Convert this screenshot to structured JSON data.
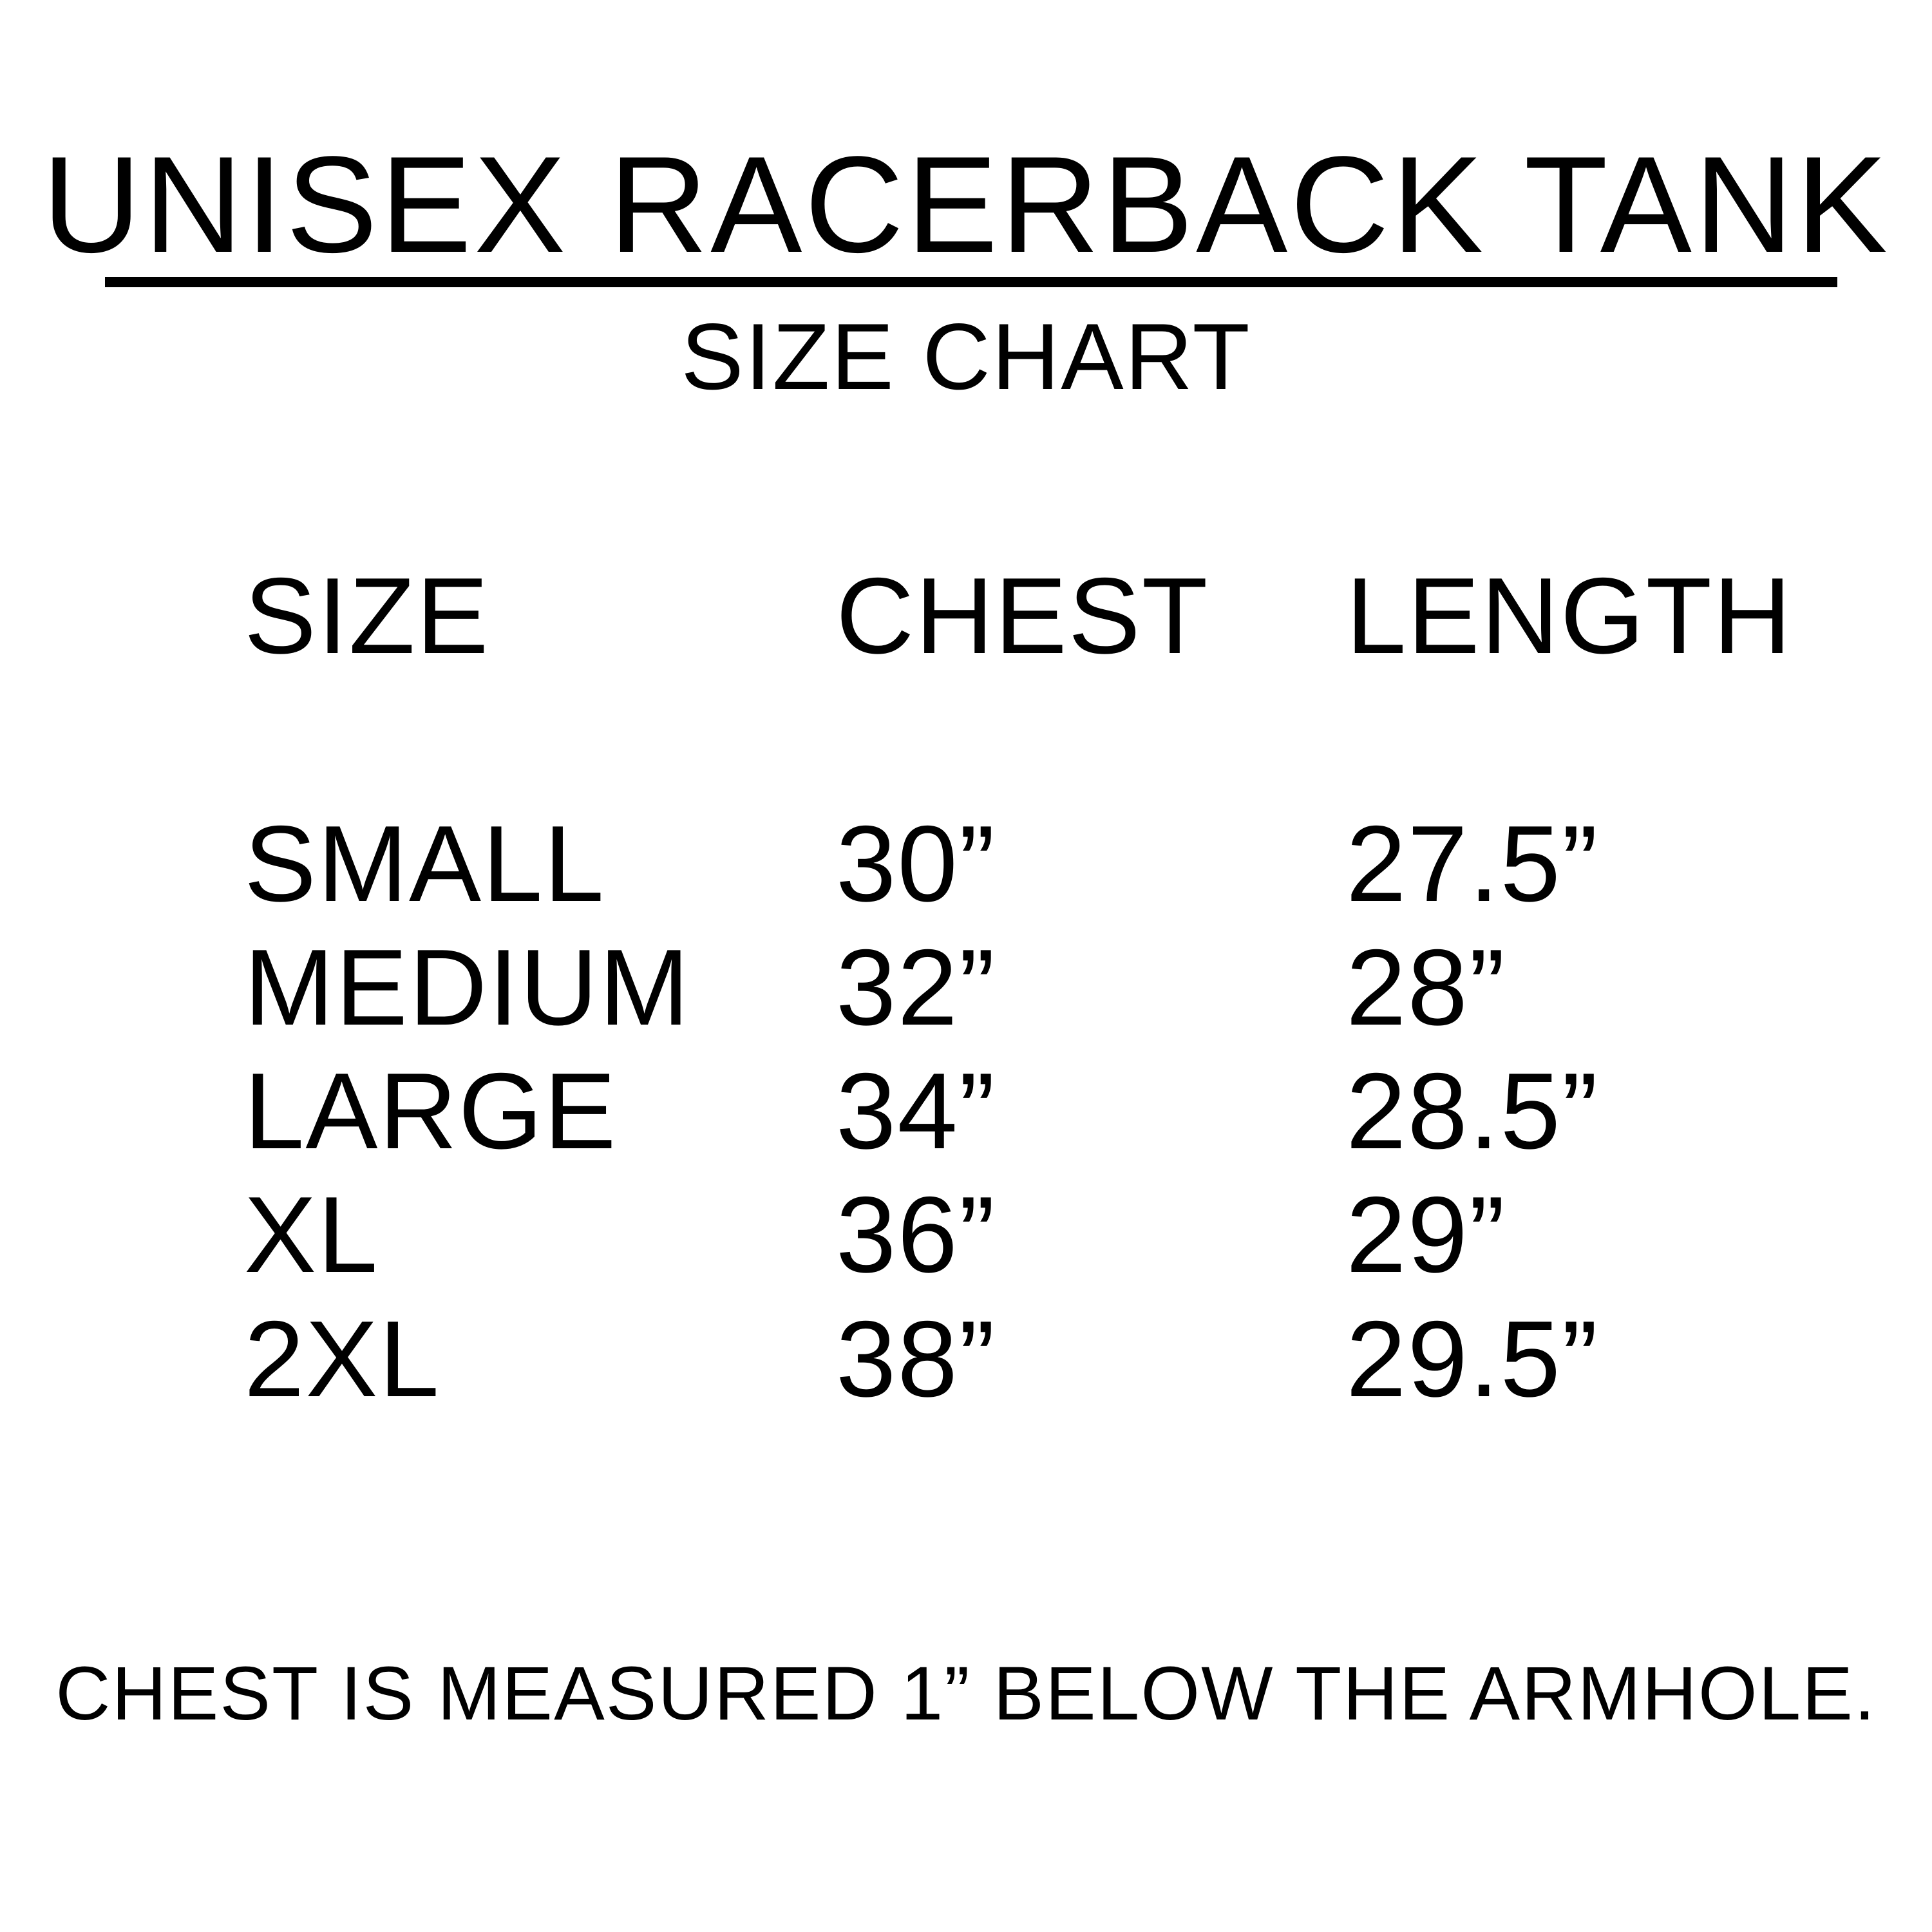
{
  "title": "UNISEX RACERBACK TANK",
  "subtitle": "SIZE CHART",
  "table": {
    "headers": [
      "SIZE",
      "CHEST",
      "LENGTH"
    ],
    "rows": [
      [
        "SMALL",
        "30”",
        "27.5”"
      ],
      [
        "MEDIUM",
        "32”",
        "28”"
      ],
      [
        "LARGE",
        "34”",
        "28.5”"
      ],
      [
        "XL",
        "36”",
        "29”"
      ],
      [
        "2XL",
        "38”",
        "29.5”"
      ]
    ]
  },
  "footer": "CHEST IS MEASURED 1” BELOW THE ARMHOLE."
}
